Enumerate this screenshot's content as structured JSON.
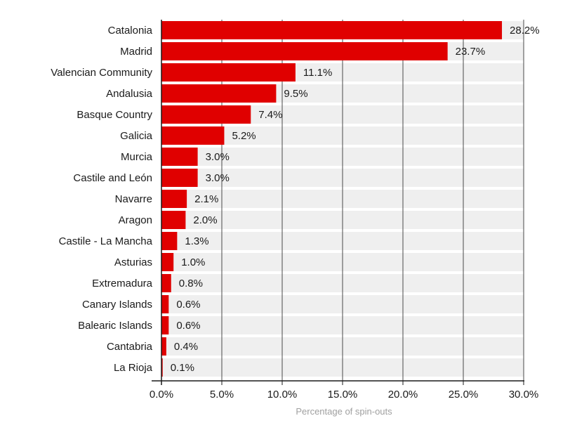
{
  "chart_data": {
    "type": "bar",
    "orientation": "horizontal",
    "categories": [
      "Catalonia",
      "Madrid",
      "Valencian Community",
      "Andalusia",
      "Basque Country",
      "Galicia",
      "Murcia",
      "Castile and León",
      "Navarre",
      "Aragon",
      "Castile - La Mancha",
      "Asturias",
      "Extremadura",
      "Canary Islands",
      "Balearic Islands",
      "Cantabria",
      "La Rioja"
    ],
    "values": [
      28.2,
      23.7,
      11.1,
      9.5,
      7.4,
      5.2,
      3.0,
      3.0,
      2.1,
      2.0,
      1.3,
      1.0,
      0.8,
      0.6,
      0.6,
      0.4,
      0.1
    ],
    "value_labels": [
      "28.2%",
      "23.7%",
      "11.1%",
      "9.5%",
      "7.4%",
      "5.2%",
      "3.0%",
      "3.0%",
      "2.1%",
      "2.0%",
      "1.3%",
      "1.0%",
      "0.8%",
      "0.6%",
      "0.6%",
      "0.4%",
      "0.1%"
    ],
    "xticks": [
      0,
      5,
      10,
      15,
      20,
      25,
      30
    ],
    "xtick_labels": [
      "0.0%",
      "5.0%",
      "10.0%",
      "15.0%",
      "20.0%",
      "25.0%",
      "30.0%"
    ],
    "xlim": [
      0,
      30
    ],
    "xlabel": "Percentage of spin-outs",
    "ylabel": "",
    "title": "",
    "grid": true,
    "colors": {
      "bar": "#e00000",
      "row_band": "#efefef",
      "grid": "#4a4a4a",
      "axis": "#1a1a1a"
    }
  }
}
